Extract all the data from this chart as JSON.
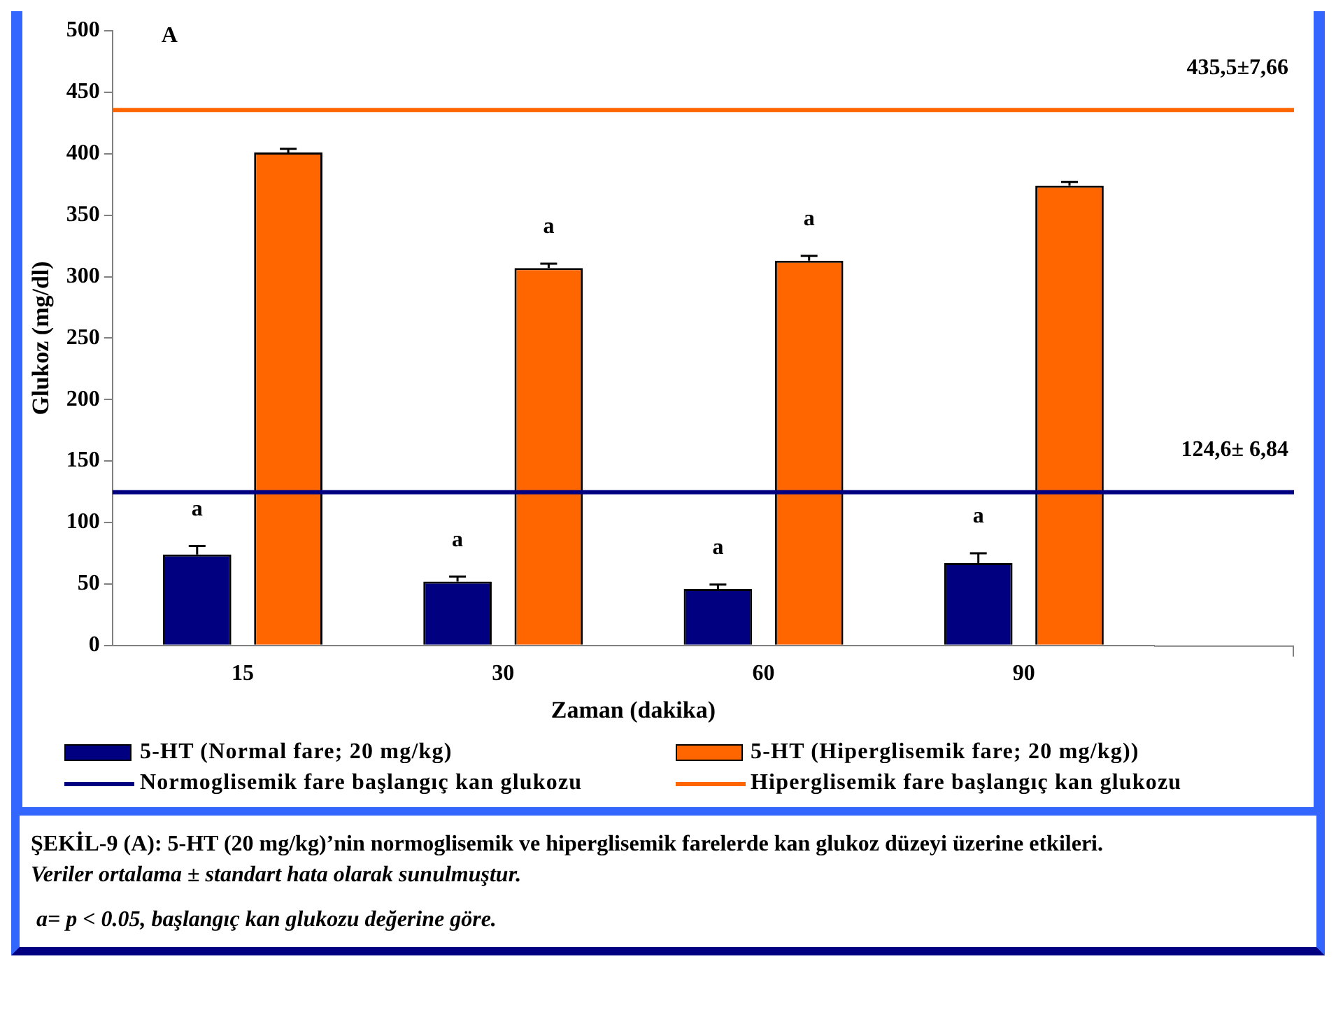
{
  "chart_data": {
    "type": "bar",
    "title": "ŞEKİL-9 (A): 5-HT (20 mg/kg)’nin normoglisemik ve hiperglisemik farelerde kan glukoz düzeyi üzerine etkileri.",
    "subtitle": "A",
    "xlabel": "Zaman (dakika)",
    "ylabel": "Glukoz (mg/dl)",
    "categories": [
      "15",
      "30",
      "60",
      "90"
    ],
    "series": [
      {
        "name": "5-HT (Normal fare; 20 mg/kg)",
        "color": "#000080",
        "values": [
          74,
          52,
          46,
          67
        ],
        "errors": [
          7,
          4,
          3.5,
          8
        ],
        "value_labels": [
          "a",
          "a",
          "a",
          "a"
        ]
      },
      {
        "name": "5-HT (Hiperglisemik fare; 20 mg/kg))",
        "color": "#ff6600",
        "values": [
          401,
          307,
          313,
          374
        ],
        "errors": [
          3,
          3.5,
          4,
          3
        ],
        "value_labels": [
          null,
          "a",
          "a",
          null
        ]
      }
    ],
    "ref_lines": [
      {
        "axis": "y",
        "value": 124.6,
        "label": "Normoglisemik fare başlangıç kan glukozu",
        "color": "#000080"
      },
      {
        "axis": "y",
        "value": 435.5,
        "label": "Hiperglisemik fare başlangıç kan glukozu",
        "color": "#ff6600"
      }
    ],
    "annotations": [
      {
        "text": "124,6± 6,84",
        "y": 124.6
      },
      {
        "text": "435,5±7,66",
        "y": 435.5
      },
      "Veriler ortalama ± standart hata olarak sunulmuştur.",
      "a= p < 0.05, başlangıç kan glukozu değerine göre."
    ],
    "ylim": [
      0,
      500
    ],
    "yticks": [
      0,
      50,
      100,
      150,
      200,
      250,
      300,
      350,
      400,
      450,
      500
    ],
    "grid": false,
    "legend": "bottom"
  }
}
